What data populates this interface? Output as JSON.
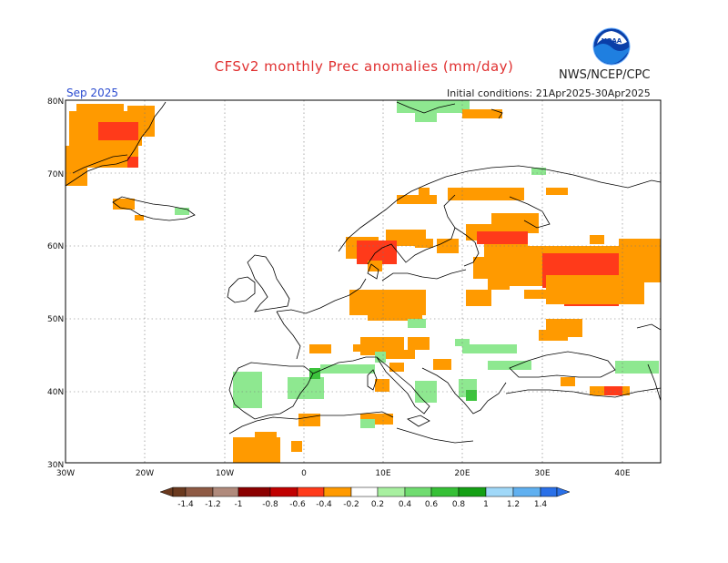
{
  "header": {
    "title": "CFSv2 monthly Prec anomalies (mm/day)",
    "org": "NWS/NCEP/CPC",
    "month": "Sep 2025",
    "init": "Initial conditions: 21Apr2025-30Apr2025"
  },
  "map": {
    "lat_labels": [
      "80N",
      "70N",
      "60N",
      "50N",
      "40N",
      "30N"
    ],
    "lon_labels": [
      "30W",
      "20W",
      "10W",
      "0",
      "10E",
      "20E",
      "30E",
      "40E"
    ]
  },
  "colorbar": {
    "labels": [
      "-1.4",
      "-1.2",
      "-1",
      "-0.8",
      "-0.6",
      "-0.4",
      "-0.2",
      "0.2",
      "0.4",
      "0.6",
      "0.8",
      "1",
      "1.2",
      "1.4"
    ],
    "colors": [
      "#6b3a1f",
      "#8e5a44",
      "#b08a7c",
      "#8b0000",
      "#c00000",
      "#ff3a1a",
      "#ff9a00",
      "#ffffff",
      "#a8f0a0",
      "#70dc70",
      "#36c036",
      "#14a014",
      "#a0d8f8",
      "#60b0f0",
      "#2a70e8"
    ]
  },
  "legend_colors": {
    "neg_strong": "#ff3a1a",
    "neg_weak": "#ff9a00",
    "pos_weak": "#8ee890",
    "pos_mid": "#3cc33c"
  }
}
